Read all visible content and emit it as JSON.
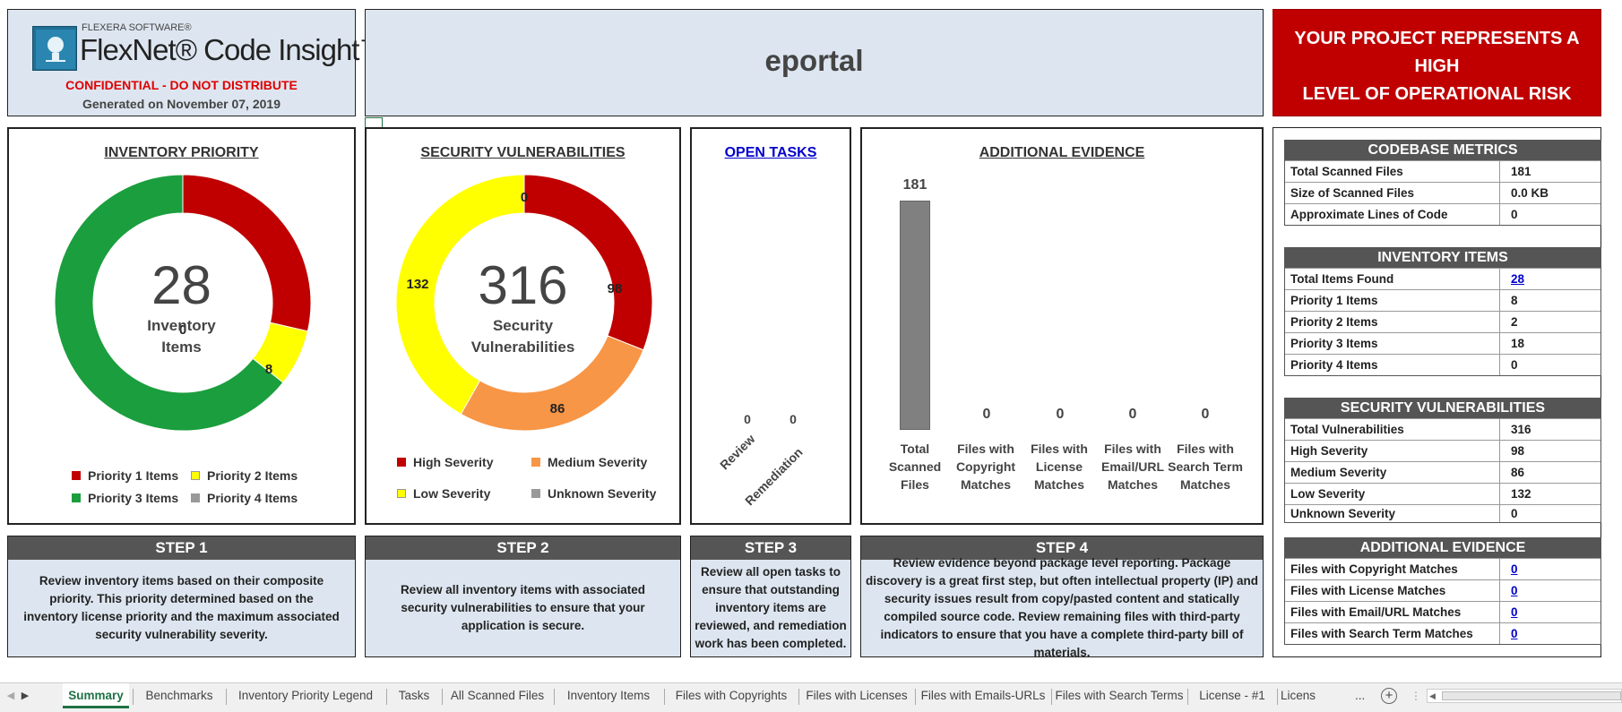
{
  "header": {
    "brand_small": "FLEXERA SOFTWARE®",
    "brand_name": "FlexNet® Code Insight™",
    "confidential": "CONFIDENTIAL - DO NOT DISTRIBUTE",
    "generated": "Generated on November 07, 2019",
    "project_name": "eportal",
    "risk_line1": "YOUR PROJECT REPRESENTS A",
    "risk_line2": "HIGH",
    "risk_line3": "LEVEL OF OPERATIONAL RISK"
  },
  "colors": {
    "high": "#c00000",
    "medium": "#f79646",
    "low": "#ffff00",
    "unknown": "#999999",
    "priority1": "#c00000",
    "priority2": "#ffff00",
    "priority3": "#1b9e3e",
    "priority4": "#999999",
    "risk_banner": "#c00000",
    "bar": "#808080"
  },
  "inventory_priority": {
    "title": "INVENTORY PRIORITY",
    "total": "28",
    "center_label_1": "Inventory",
    "center_label_2": "Items",
    "legend": [
      "Priority 1 Items",
      "Priority 2 Items",
      "Priority 3 Items",
      "Priority 4 Items"
    ]
  },
  "security_vulnerabilities": {
    "title": "SECURITY VULNERABILITIES",
    "total": "316",
    "center_label_1": "Security",
    "center_label_2": "Vulnerabilities",
    "legend": [
      "High Severity",
      "Medium Severity",
      "Low Severity",
      "Unknown Severity"
    ]
  },
  "open_tasks": {
    "title": "OPEN TASKS"
  },
  "additional_evidence": {
    "title": "ADDITIONAL EVIDENCE"
  },
  "chart_data": [
    {
      "type": "pie",
      "title": "INVENTORY PRIORITY",
      "categories": [
        "Priority 1 Items",
        "Priority 2 Items",
        "Priority 3 Items",
        "Priority 4 Items"
      ],
      "values": [
        8,
        2,
        18,
        0
      ]
    },
    {
      "type": "pie",
      "title": "SECURITY VULNERABILITIES",
      "categories": [
        "High Severity",
        "Medium Severity",
        "Low Severity",
        "Unknown Severity"
      ],
      "values": [
        98,
        86,
        132,
        0
      ]
    },
    {
      "type": "bar",
      "title": "OPEN TASKS",
      "categories": [
        "Review",
        "Remediation"
      ],
      "values": [
        0,
        0
      ]
    },
    {
      "type": "bar",
      "title": "ADDITIONAL EVIDENCE",
      "categories": [
        "Total Scanned Files",
        "Files with Copyright Matches",
        "Files with License Matches",
        "Files with Email/URL Matches",
        "Files with Search Term Matches"
      ],
      "values": [
        181,
        0,
        0,
        0,
        0
      ],
      "ylim": [
        0,
        181
      ]
    }
  ],
  "steps": [
    {
      "title": "STEP 1",
      "text": "Review inventory items based on their composite priority. This priority determined based on the inventory license priority and the maximum associated security vulnerability severity."
    },
    {
      "title": "STEP 2",
      "text": "Review all inventory items with associated security vulnerabilities to ensure that your application is secure."
    },
    {
      "title": "STEP 3",
      "text": "Review all open tasks to ensure that outstanding inventory items are reviewed, and remediation work has been completed."
    },
    {
      "title": "STEP 4",
      "text": "Review evidence beyond package level reporting. Package discovery is a great first step, but often intellectual property (IP) and security issues result from copy/pasted content and statically compiled source code. Review remaining files with third-party indicators to ensure that you have a complete third-party bill of materials."
    }
  ],
  "metrics": {
    "codebase": {
      "title": "CODEBASE METRICS",
      "rows": [
        {
          "k": "Total Scanned Files",
          "v": "181"
        },
        {
          "k": "Size of Scanned Files",
          "v": "0.0 KB"
        },
        {
          "k": "Approximate Lines of Code",
          "v": "0"
        }
      ]
    },
    "inventory": {
      "title": "INVENTORY ITEMS",
      "rows": [
        {
          "k": "Total Items Found",
          "v": "28"
        },
        {
          "k": "Priority 1 Items",
          "v": "8"
        },
        {
          "k": "Priority 2 Items",
          "v": "2"
        },
        {
          "k": "Priority 3 Items",
          "v": "18"
        },
        {
          "k": "Priority 4 Items",
          "v": "0"
        }
      ]
    },
    "security": {
      "title": "SECURITY VULNERABILITIES",
      "rows": [
        {
          "k": "Total Vulnerabilities",
          "v": "316"
        },
        {
          "k": "High Severity",
          "v": "98"
        },
        {
          "k": "Medium Severity",
          "v": "86"
        },
        {
          "k": "Low Severity",
          "v": "132"
        },
        {
          "k": "Unknown Severity",
          "v": "0"
        }
      ]
    },
    "evidence": {
      "title": "ADDITIONAL EVIDENCE",
      "rows": [
        {
          "k": "Files with Copyright Matches",
          "v": "0"
        },
        {
          "k": "Files with License Matches",
          "v": "0"
        },
        {
          "k": "Files with Email/URL Matches",
          "v": "0"
        },
        {
          "k": "Files with Search Term Matches",
          "v": "0"
        }
      ]
    }
  },
  "tabs": [
    "Summary",
    "Benchmarks",
    "Inventory Priority Legend",
    "Tasks",
    "All Scanned Files",
    "Inventory Items",
    "Files with Copyrights",
    "Files with Licenses",
    "Files with Emails-URLs",
    "Files with Search Terms",
    "License - #1",
    "Licens"
  ],
  "tabs_ellipsis": "..."
}
